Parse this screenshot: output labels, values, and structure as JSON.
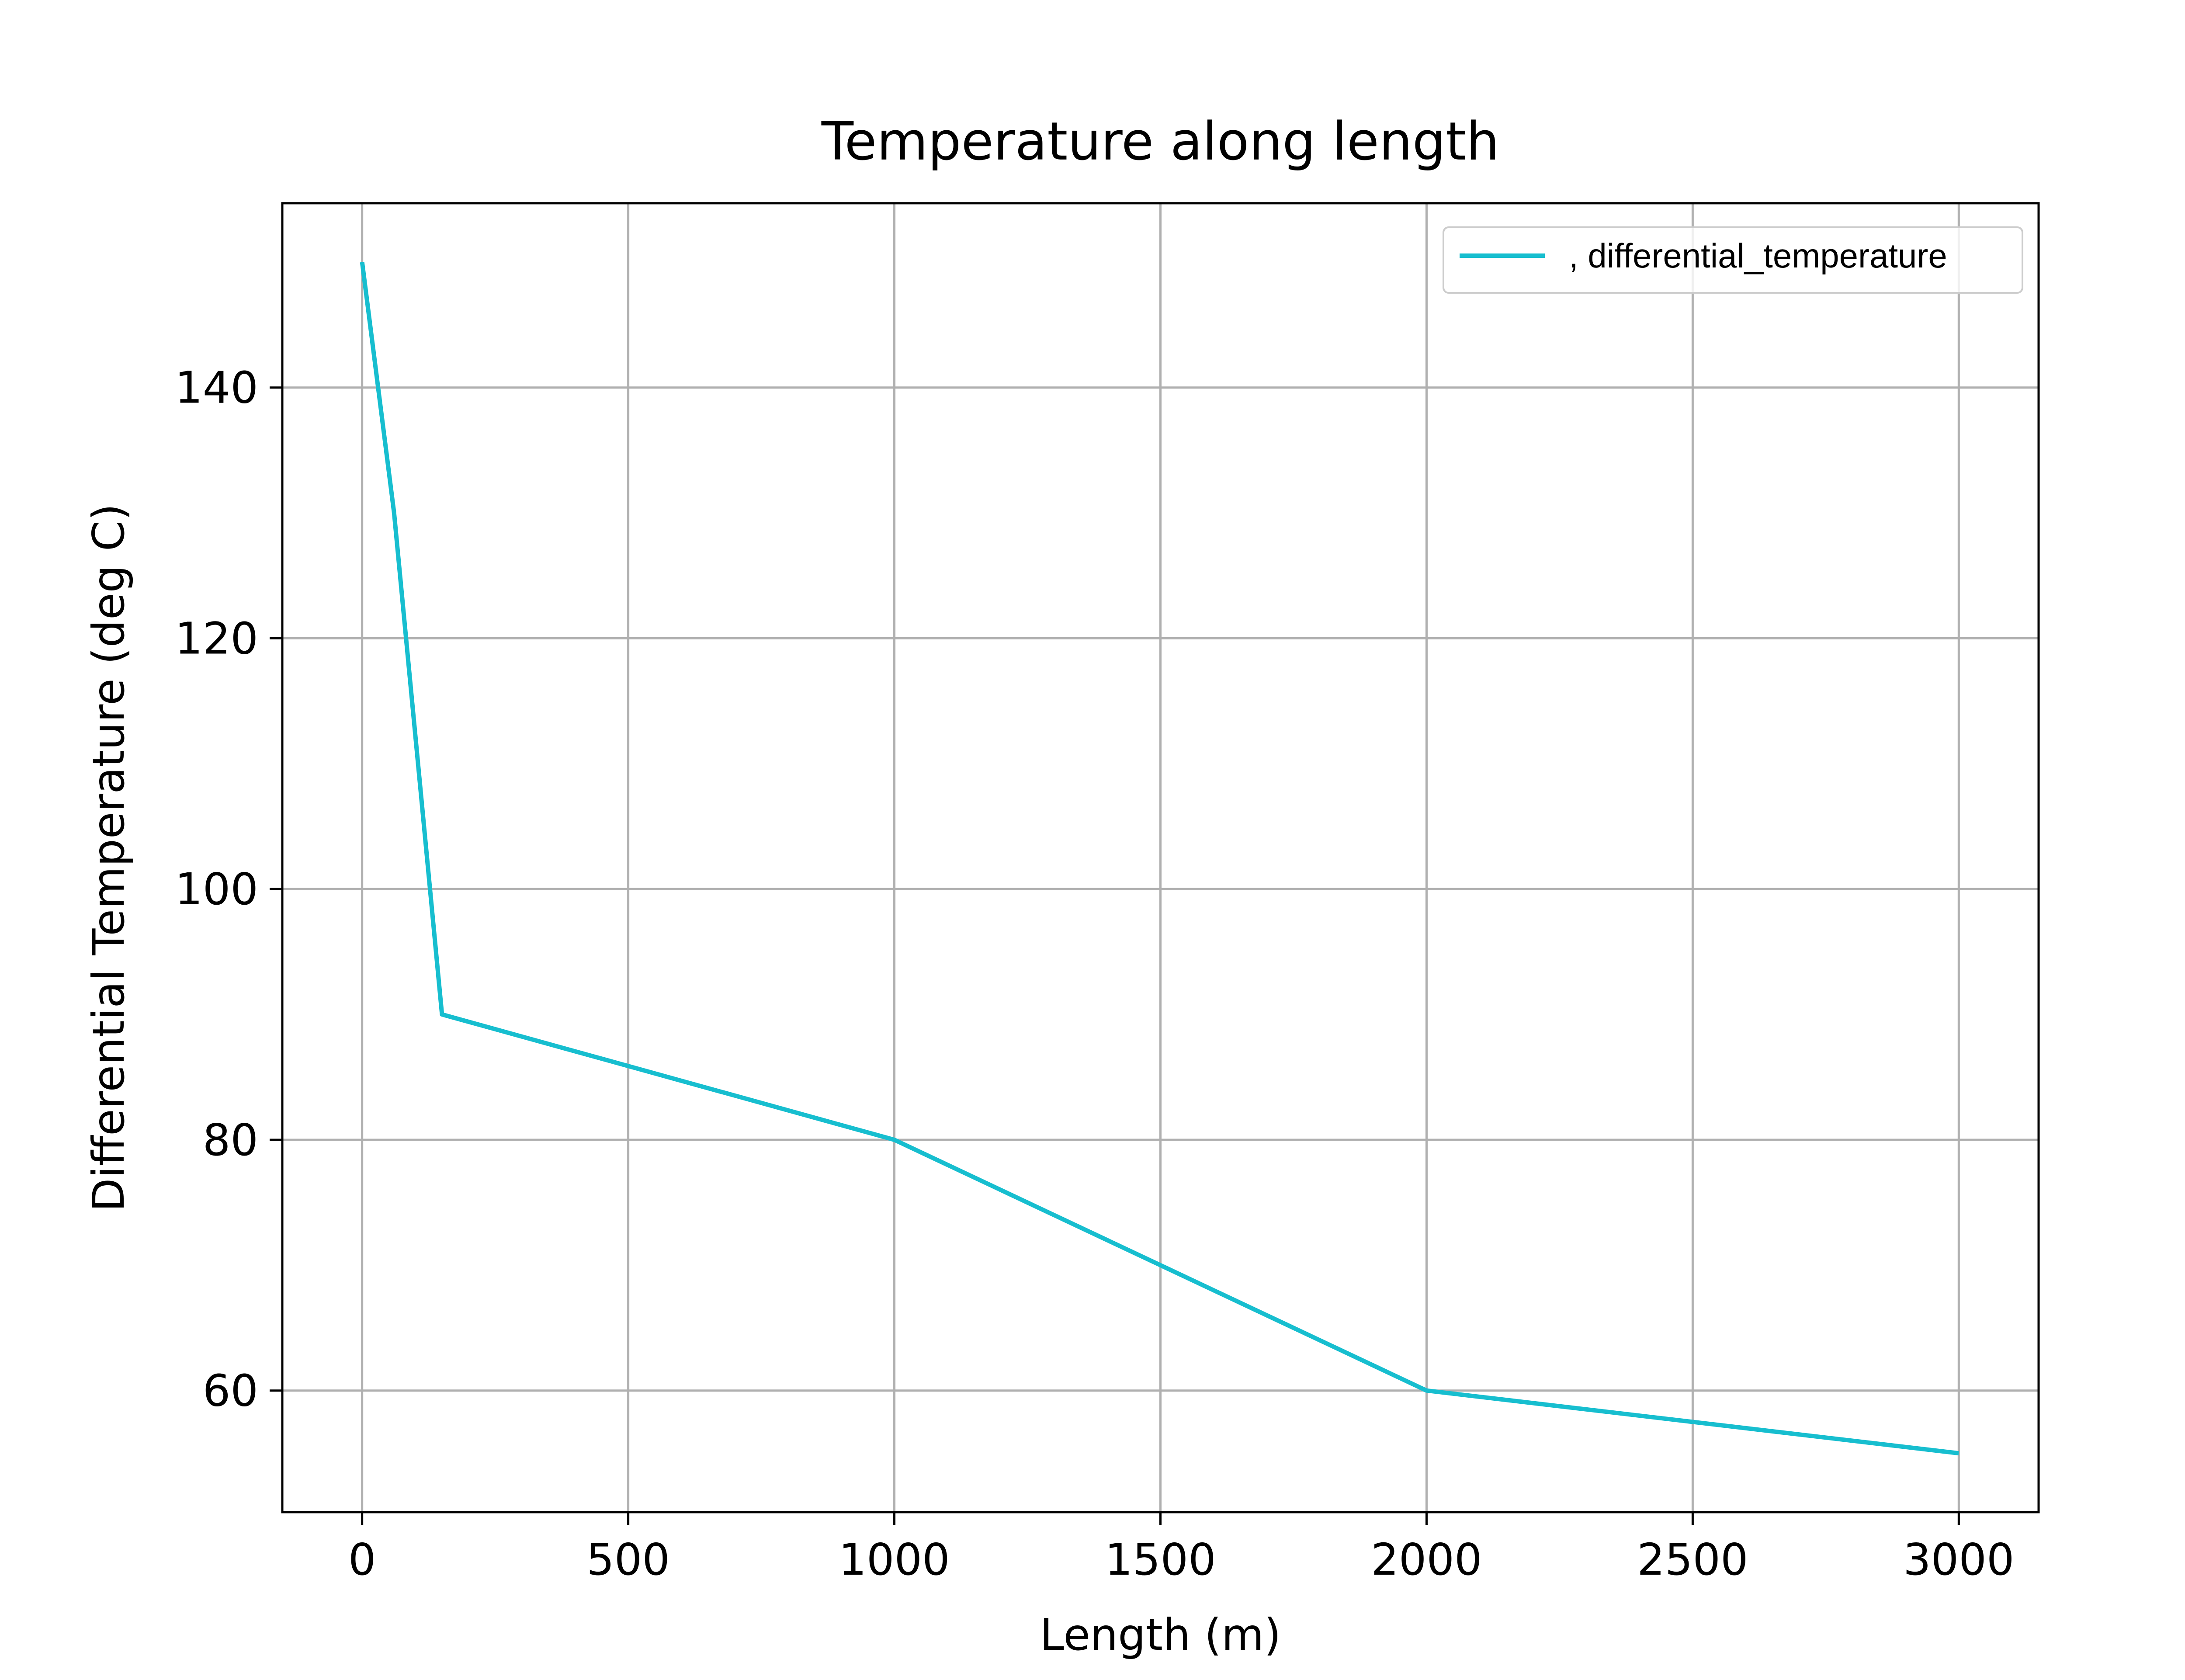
{
  "chart_data": {
    "type": "line",
    "title": "Temperature along length",
    "xlabel": "Length (m)",
    "ylabel": "Differential Temperature (deg C)",
    "xlim": [
      -150,
      3150
    ],
    "ylim": [
      50.3,
      154.7
    ],
    "x_ticks": [
      0,
      500,
      1000,
      1500,
      2000,
      2500,
      3000
    ],
    "y_ticks": [
      60,
      80,
      100,
      120,
      140
    ],
    "grid": true,
    "legend_position": "top-right",
    "series": [
      {
        "name": ", differential_temperature",
        "color": "#17becf",
        "x": [
          0,
          60,
          150,
          1000,
          1500,
          2000,
          3000
        ],
        "y": [
          150,
          130,
          90,
          80,
          70,
          60,
          55
        ]
      }
    ]
  }
}
